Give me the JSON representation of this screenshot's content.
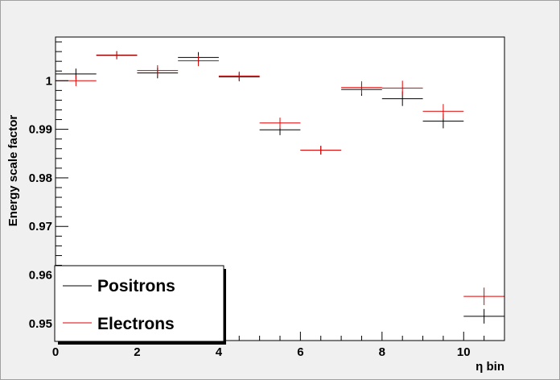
{
  "chart_data": {
    "type": "scatter",
    "xlabel": "η bin",
    "ylabel": "Energy scale factor",
    "xlim": [
      0,
      11
    ],
    "ylim": [
      0.9465,
      1.009
    ],
    "grid": false,
    "x_ticks": [
      {
        "value": 0,
        "label": "0"
      },
      {
        "value": 2,
        "label": "2"
      },
      {
        "value": 4,
        "label": "4"
      },
      {
        "value": 6,
        "label": "6"
      },
      {
        "value": 8,
        "label": "8"
      },
      {
        "value": 10,
        "label": "10"
      }
    ],
    "y_ticks": [
      {
        "value": 0.95,
        "label": "0.95"
      },
      {
        "value": 0.96,
        "label": "0.96"
      },
      {
        "value": 0.97,
        "label": "0.97"
      },
      {
        "value": 0.98,
        "label": "0.98"
      },
      {
        "value": 0.99,
        "label": "0.99"
      },
      {
        "value": 1.0,
        "label": "1"
      }
    ],
    "legend": {
      "placement": "bottom-left",
      "entries": [
        {
          "label": "Positrons",
          "color": "#000000"
        },
        {
          "label": "Electrons",
          "color": "#e00000"
        }
      ]
    },
    "series": [
      {
        "name": "Positrons",
        "color": "#000000",
        "bin_edges": [
          0,
          1,
          2,
          3,
          4,
          5,
          6,
          7,
          8,
          9,
          10,
          11
        ],
        "values": [
          1.0014,
          1.0053,
          1.0016,
          1.0048,
          1.0008,
          0.9899,
          0.9857,
          0.9982,
          0.9963,
          0.9917,
          0.9515
        ],
        "errors": [
          0.0011,
          0.0008,
          0.0011,
          0.0011,
          0.0009,
          0.0011,
          0.0009,
          0.0013,
          0.0015,
          0.0015,
          0.0015
        ]
      },
      {
        "name": "Electrons",
        "color": "#e00000",
        "bin_edges": [
          0,
          1,
          2,
          3,
          4,
          5,
          6,
          7,
          8,
          9,
          10,
          11
        ],
        "values": [
          1.0,
          1.0052,
          1.0021,
          1.0041,
          1.001,
          0.9913,
          0.9857,
          0.9986,
          0.9985,
          0.9937,
          0.9556
        ],
        "errors": [
          0.0011,
          0.0008,
          0.0011,
          0.0011,
          0.0009,
          0.0011,
          0.0009,
          0.0013,
          0.0015,
          0.0015,
          0.0018
        ]
      }
    ]
  }
}
